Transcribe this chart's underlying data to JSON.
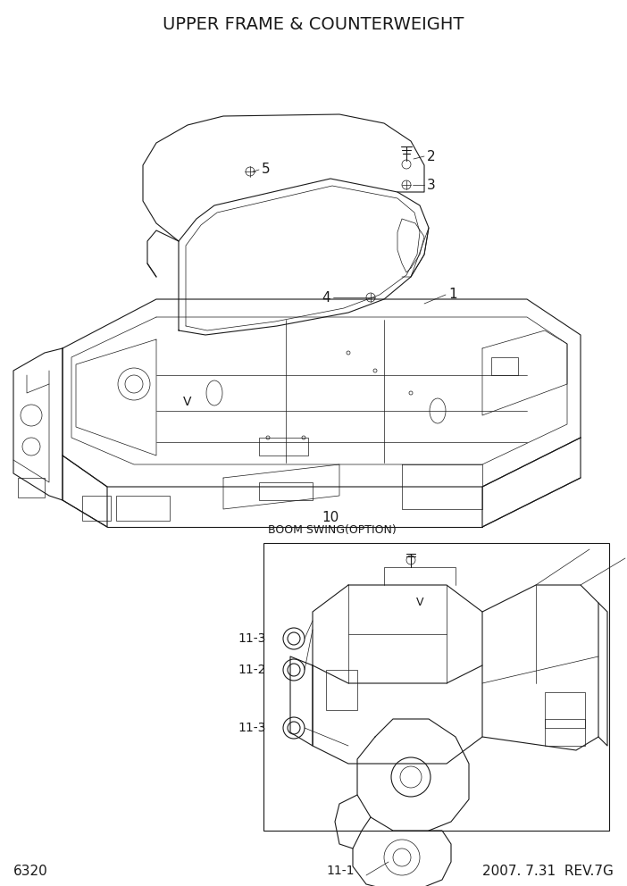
{
  "title": "UPPER FRAME & COUNTERWEIGHT",
  "page_number": "6320",
  "date_rev": "2007. 7.31  REV.7G",
  "bg_color": "#ffffff",
  "line_color": "#1a1a1a",
  "title_fontsize": 14,
  "footer_fontsize": 11,
  "label_fontsize": 11,
  "annotation_fontsize": 10,
  "boom_swing_label": "BOOM SWING(OPTION)"
}
